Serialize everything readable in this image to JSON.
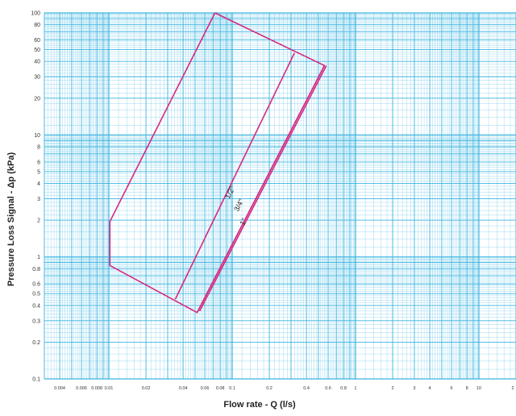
{
  "chart_data": {
    "type": "line",
    "title": "",
    "xlabel": "Flow rate - Q (l/s)",
    "ylabel": "Pressure Loss Signal  - Δp (kPa)",
    "xscale": "log",
    "yscale": "log",
    "xlim": [
      0.003,
      20
    ],
    "ylim": [
      0.1,
      100
    ],
    "grid": true,
    "x_ticks": [
      "0.004",
      "0.006",
      "0.008",
      "0.01",
      "0.02",
      "0.04",
      "0.06",
      "0.08",
      "0.1",
      "0.2",
      "0.4",
      "0.6",
      "0.8",
      "1",
      "2",
      "3",
      "4",
      "6",
      "8",
      "10",
      "2"
    ],
    "y_ticks": [
      "0.1",
      "0.2",
      "0.3",
      "0.4",
      "0.5",
      "0.6",
      "0.8",
      "1",
      "2",
      "3",
      "4",
      "5",
      "6",
      "8",
      "10",
      "20",
      "30",
      "40",
      "50",
      "60",
      "80",
      "100"
    ],
    "series": [
      {
        "name": "",
        "x": [
          0.0725,
          0.56,
          0.052,
          0.0102,
          0.0102,
          0.0725
        ],
        "y": [
          100,
          37,
          0.35,
          0.85,
          1.95,
          100
        ]
      },
      {
        "name": "1/2\"",
        "x": [
          0.0346,
          0.32
        ],
        "y": [
          0.45,
          47
        ]
      },
      {
        "name": "3/4\"",
        "x": [
          0.052,
          0.56
        ],
        "y": [
          0.35,
          37
        ]
      },
      {
        "name": "1\"",
        "x": [
          0.0545,
          0.58
        ],
        "y": [
          0.36,
          37
        ]
      }
    ],
    "annotations": [
      {
        "text": "1/2\"",
        "x": 0.1,
        "y": 3.3
      },
      {
        "text": "3/4\"",
        "x": 0.118,
        "y": 2.6
      },
      {
        "text": "1\"",
        "x": 0.128,
        "y": 1.9
      }
    ],
    "colors": {
      "grid": "#3ab4e0",
      "line": "#d42a82"
    }
  }
}
